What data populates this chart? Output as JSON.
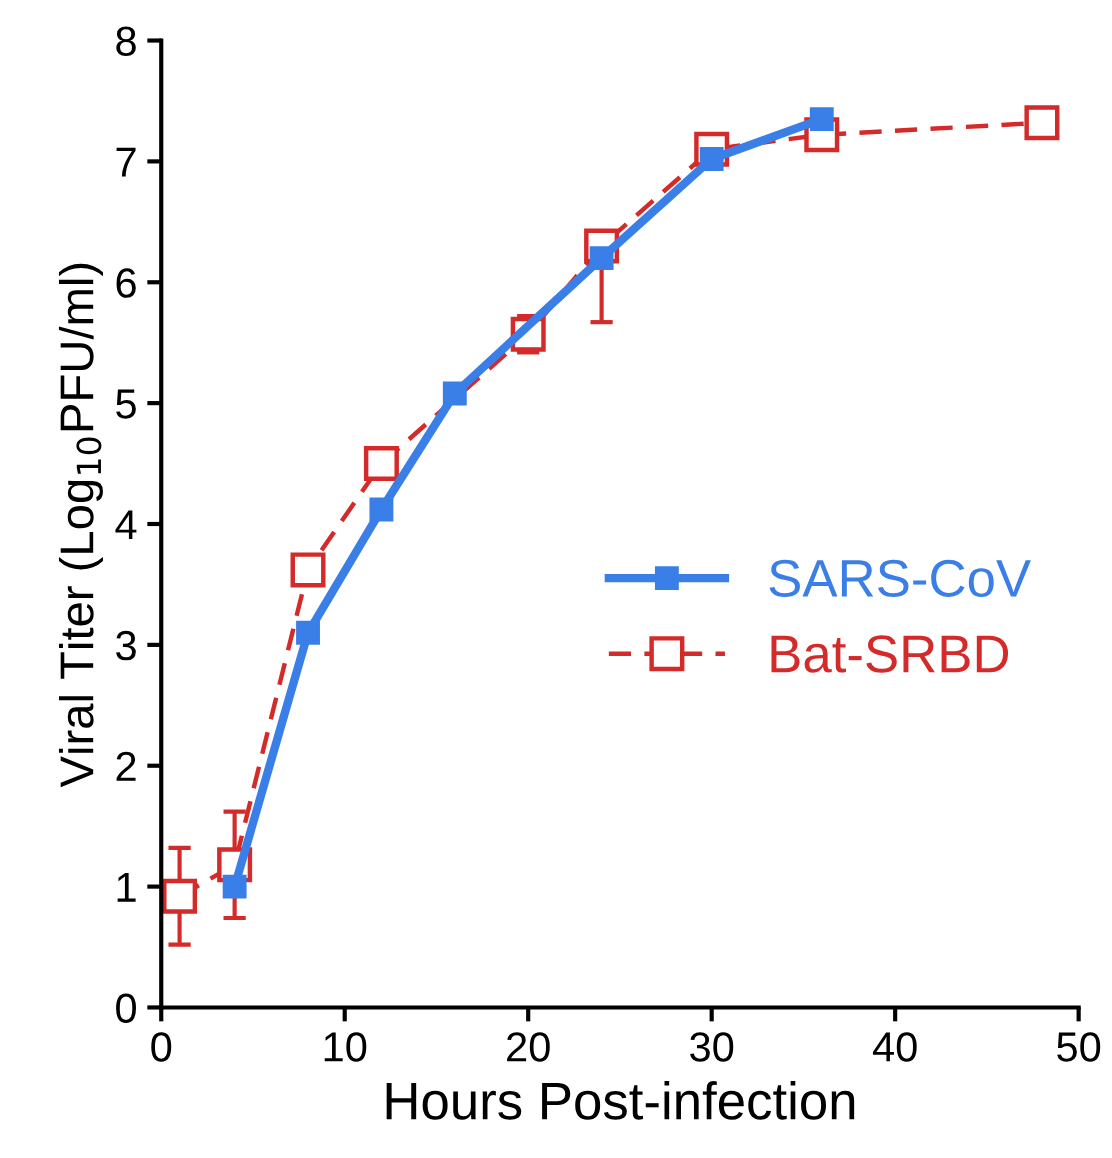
{
  "chart_data": {
    "type": "line",
    "xlabel": "Hours Post-infection",
    "ylabel": "Viral Titer (Log$_{10}$PFU/ml)",
    "xlim": [
      0,
      50
    ],
    "xticks": [
      0,
      10,
      20,
      30,
      40,
      50
    ],
    "ylim": [
      0,
      8
    ],
    "yticks": [
      0,
      1,
      2,
      3,
      4,
      5,
      6,
      7,
      8
    ],
    "grid": false,
    "legend": "right",
    "marker": "square",
    "series": [
      {
        "name": "SARS-CoV",
        "color": "#3a7fe8",
        "line_style": "solid",
        "x": [
          4,
          8,
          12,
          16,
          24,
          30,
          36
        ],
        "values": [
          1.0,
          3.1,
          4.12,
          5.08,
          6.2,
          7.02,
          7.35
        ]
      },
      {
        "name": "Bat-SRBD",
        "color": "#d42a2a",
        "line_style": "dashed",
        "x": [
          1,
          4,
          8,
          12,
          20,
          24,
          30,
          36,
          48
        ],
        "values": [
          0.92,
          1.18,
          3.62,
          4.5,
          5.57,
          6.3,
          7.1,
          7.22,
          7.32
        ],
        "errors": [
          0.4,
          0.44,
          0.12,
          0.1,
          0.15,
          [
            5.67,
            6.3
          ],
          0.08,
          0.08,
          0.12
        ]
      }
    ]
  }
}
